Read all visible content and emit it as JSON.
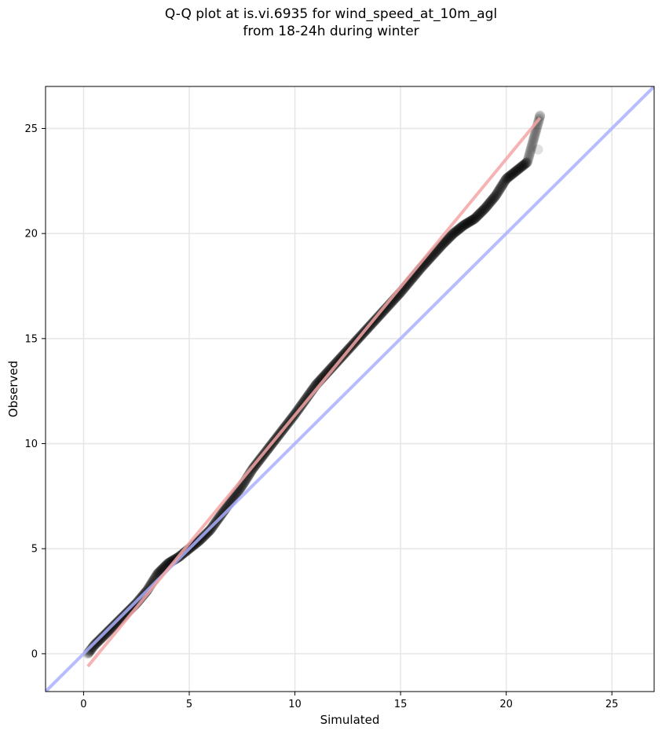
{
  "chart_data": {
    "type": "scatter",
    "title": "Q-Q plot at is.vi.6935 for wind_speed_at_10m_agl",
    "subtitle": "from 18-24h during winter",
    "xlabel": "Simulated",
    "ylabel": "Observed",
    "xlim": [
      -1.8,
      27
    ],
    "ylim": [
      -1.8,
      27
    ],
    "xticks": [
      0,
      5,
      10,
      15,
      20,
      25
    ],
    "yticks": [
      0,
      5,
      10,
      15,
      20,
      25
    ],
    "grid": true,
    "quantile_anchors": {
      "x": [
        0.2,
        0.5,
        1.0,
        1.5,
        2.0,
        2.5,
        3.0,
        3.5,
        4.0,
        4.5,
        5.0,
        5.5,
        6.0,
        6.5,
        7.0,
        7.5,
        8.0,
        9.0,
        10.0,
        11.0,
        12.0,
        13.0,
        14.0,
        15.0,
        16.0,
        17.0,
        17.5,
        18.0,
        18.5,
        19.0,
        19.5,
        20.0,
        20.5,
        21.0,
        21.6
      ],
      "y": [
        0.0,
        0.4,
        0.9,
        1.4,
        1.9,
        2.4,
        3.0,
        3.8,
        4.3,
        4.6,
        5.0,
        5.4,
        5.9,
        6.6,
        7.3,
        8.0,
        8.8,
        10.1,
        11.4,
        12.8,
        13.9,
        15.0,
        16.1,
        17.2,
        18.4,
        19.5,
        20.0,
        20.4,
        20.7,
        21.2,
        21.8,
        22.6,
        23.0,
        23.4,
        25.6
      ]
    },
    "outlier_points": [
      {
        "x": 21.5,
        "y": 24.0
      },
      {
        "x": 21.6,
        "y": 25.6
      }
    ],
    "reference_lines": [
      {
        "name": "1:1",
        "color": "#aab0ff",
        "x": [
          -1.8,
          27
        ],
        "y": [
          -1.8,
          27
        ]
      },
      {
        "name": "fit",
        "color": "#f3a6a6",
        "x": [
          0.2,
          21.6
        ],
        "y": [
          -0.6,
          25.5
        ]
      }
    ],
    "point_color": "#000000",
    "point_opacity": 0.12
  }
}
